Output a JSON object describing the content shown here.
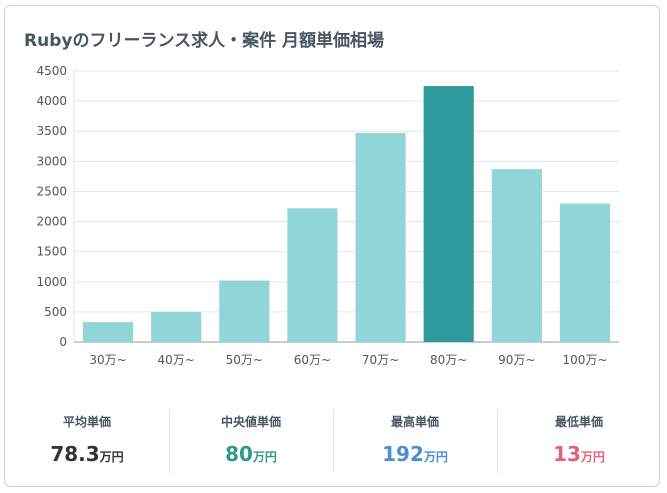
{
  "chart_data": {
    "type": "bar",
    "title": "Rubyのフリーランス求人・案件 月額単価相場",
    "categories": [
      "30万~",
      "40万~",
      "50万~",
      "60万~",
      "70万~",
      "80万~",
      "90万~",
      "100万~"
    ],
    "values": [
      330,
      500,
      1020,
      2220,
      3470,
      4250,
      2870,
      2300
    ],
    "highlight_index": 5,
    "ylim": [
      0,
      4500
    ],
    "yticks": [
      0,
      500,
      1000,
      1500,
      2000,
      2500,
      3000,
      3500,
      4000,
      4500
    ],
    "grid": true,
    "xlabel": "",
    "ylabel": "",
    "colors": {
      "bar": "#90d5d8",
      "highlight": "#2e9a9c"
    }
  },
  "stats": [
    {
      "label": "平均単価",
      "value": "78.3",
      "unit": "万円",
      "color": "#333333"
    },
    {
      "label": "中央値単価",
      "value": "80",
      "unit": "万円",
      "color": "#2e9a8c"
    },
    {
      "label": "最高単価",
      "value": "192",
      "unit": "万円",
      "color": "#4a8fd4"
    },
    {
      "label": "最低単価",
      "value": "13",
      "unit": "万円",
      "color": "#e5607e"
    }
  ]
}
